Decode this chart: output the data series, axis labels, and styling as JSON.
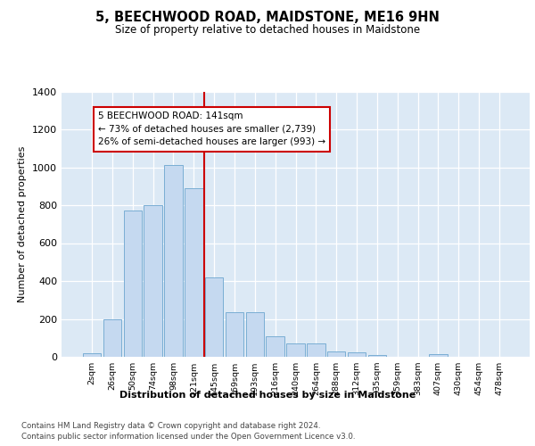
{
  "title": "5, BEECHWOOD ROAD, MAIDSTONE, ME16 9HN",
  "subtitle": "Size of property relative to detached houses in Maidstone",
  "xlabel": "Distribution of detached houses by size in Maidstone",
  "ylabel": "Number of detached properties",
  "bar_labels": [
    "2sqm",
    "26sqm",
    "50sqm",
    "74sqm",
    "98sqm",
    "121sqm",
    "145sqm",
    "169sqm",
    "193sqm",
    "216sqm",
    "240sqm",
    "264sqm",
    "288sqm",
    "312sqm",
    "335sqm",
    "359sqm",
    "383sqm",
    "407sqm",
    "430sqm",
    "454sqm",
    "478sqm"
  ],
  "bar_values": [
    20,
    200,
    770,
    800,
    1010,
    890,
    420,
    235,
    235,
    107,
    70,
    70,
    27,
    22,
    10,
    0,
    0,
    13,
    0,
    0,
    0
  ],
  "bar_color": "#c5d9f0",
  "bar_edge_color": "#7aaed4",
  "annotation_title": "5 BEECHWOOD ROAD: 141sqm",
  "annotation_line1": "← 73% of detached houses are smaller (2,739)",
  "annotation_line2": "26% of semi-detached houses are larger (993) →",
  "annotation_box_color": "#ffffff",
  "annotation_box_edge": "#cc0000",
  "vline_color": "#cc0000",
  "vline_x_idx": 5.5,
  "ylim": [
    0,
    1400
  ],
  "yticks": [
    0,
    200,
    400,
    600,
    800,
    1000,
    1200,
    1400
  ],
  "footer_line1": "Contains HM Land Registry data © Crown copyright and database right 2024.",
  "footer_line2": "Contains public sector information licensed under the Open Government Licence v3.0.",
  "plot_background": "#dce9f5"
}
